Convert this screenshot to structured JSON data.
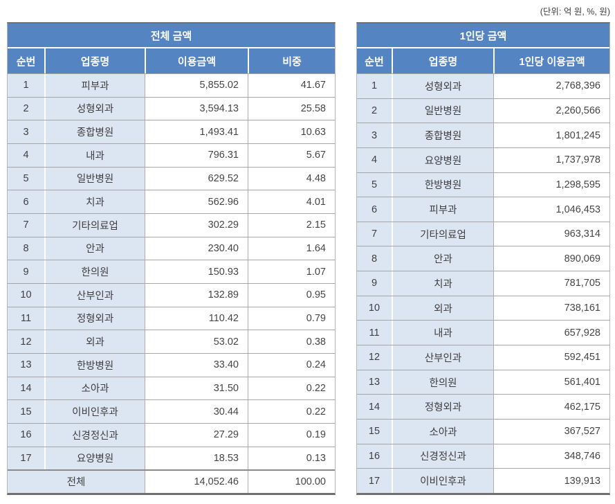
{
  "unit_note": "(단위: 억 원, %, 원)",
  "colors": {
    "header_blue": "#5584c2",
    "light_blue_cell": "#dce5f2",
    "row_divider": "#a6a6a6",
    "outer_border": "#6f6f6f",
    "header_text": "#ffffff",
    "body_text": "#3f3f3f"
  },
  "left_table": {
    "title": "전체 금액",
    "columns": [
      "순번",
      "업종명",
      "이용금액",
      "비중"
    ],
    "rows": [
      [
        "1",
        "피부과",
        "5,855.02",
        "41.67"
      ],
      [
        "2",
        "성형외과",
        "3,594.13",
        "25.58"
      ],
      [
        "3",
        "종합병원",
        "1,493.41",
        "10.63"
      ],
      [
        "4",
        "내과",
        "796.31",
        "5.67"
      ],
      [
        "5",
        "일반병원",
        "629.52",
        "4.48"
      ],
      [
        "6",
        "치과",
        "562.96",
        "4.01"
      ],
      [
        "7",
        "기타의료업",
        "302.29",
        "2.15"
      ],
      [
        "8",
        "안과",
        "230.40",
        "1.64"
      ],
      [
        "9",
        "한의원",
        "150.93",
        "1.07"
      ],
      [
        "10",
        "산부인과",
        "132.89",
        "0.95"
      ],
      [
        "11",
        "정형외과",
        "110.42",
        "0.79"
      ],
      [
        "12",
        "외과",
        "53.02",
        "0.38"
      ],
      [
        "13",
        "한방병원",
        "33.40",
        "0.24"
      ],
      [
        "14",
        "소아과",
        "31.50",
        "0.22"
      ],
      [
        "15",
        "이비인후과",
        "30.44",
        "0.22"
      ],
      [
        "16",
        "신경정신과",
        "27.29",
        "0.19"
      ],
      [
        "17",
        "요양병원",
        "18.53",
        "0.13"
      ]
    ],
    "total": {
      "label": "전체",
      "amount": "14,052.46",
      "share": "100.00"
    }
  },
  "right_table": {
    "title": "1인당 금액",
    "columns": [
      "순번",
      "업종명",
      "1인당 이용금액"
    ],
    "rows": [
      [
        "1",
        "성형외과",
        "2,768,396"
      ],
      [
        "2",
        "일반병원",
        "2,260,566"
      ],
      [
        "3",
        "종합병원",
        "1,801,245"
      ],
      [
        "4",
        "요양병원",
        "1,737,978"
      ],
      [
        "5",
        "한방병원",
        "1,298,595"
      ],
      [
        "6",
        "피부과",
        "1,046,453"
      ],
      [
        "7",
        "기타의료업",
        "963,314"
      ],
      [
        "8",
        "안과",
        "890,069"
      ],
      [
        "9",
        "치과",
        "781,705"
      ],
      [
        "10",
        "외과",
        "738,161"
      ],
      [
        "11",
        "내과",
        "657,928"
      ],
      [
        "12",
        "산부인과",
        "592,451"
      ],
      [
        "13",
        "한의원",
        "561,401"
      ],
      [
        "14",
        "정형외과",
        "462,175"
      ],
      [
        "15",
        "소아과",
        "367,527"
      ],
      [
        "16",
        "신경정신과",
        "348,746"
      ],
      [
        "17",
        "이비인후과",
        "139,913"
      ]
    ]
  }
}
